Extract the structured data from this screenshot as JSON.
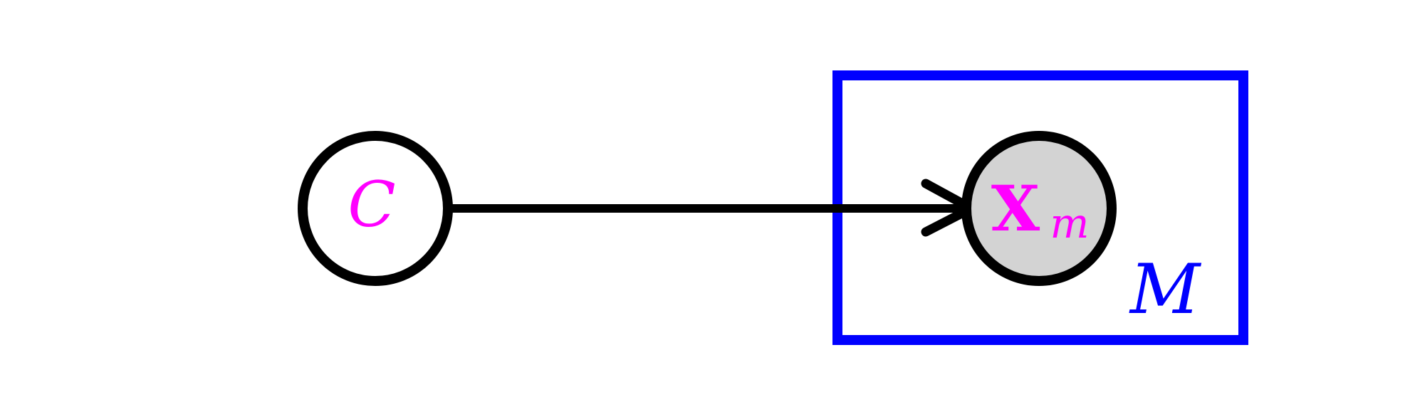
{
  "colors": {
    "node_stroke": "#000000",
    "latent_fill": "#ffffff",
    "observed_fill": "#d3d3d3",
    "node_label": "#ff00ff",
    "plate_stroke": "#0000ff",
    "plate_label": "#0000ff",
    "edge": "#000000"
  },
  "nodes": {
    "c": {
      "label": "C",
      "kind": "latent"
    },
    "x": {
      "label": "X",
      "subscript": "m",
      "kind": "observed"
    }
  },
  "plate": {
    "label": "M",
    "contains": [
      "x"
    ]
  },
  "edges": [
    {
      "from": "c",
      "to": "x"
    }
  ]
}
